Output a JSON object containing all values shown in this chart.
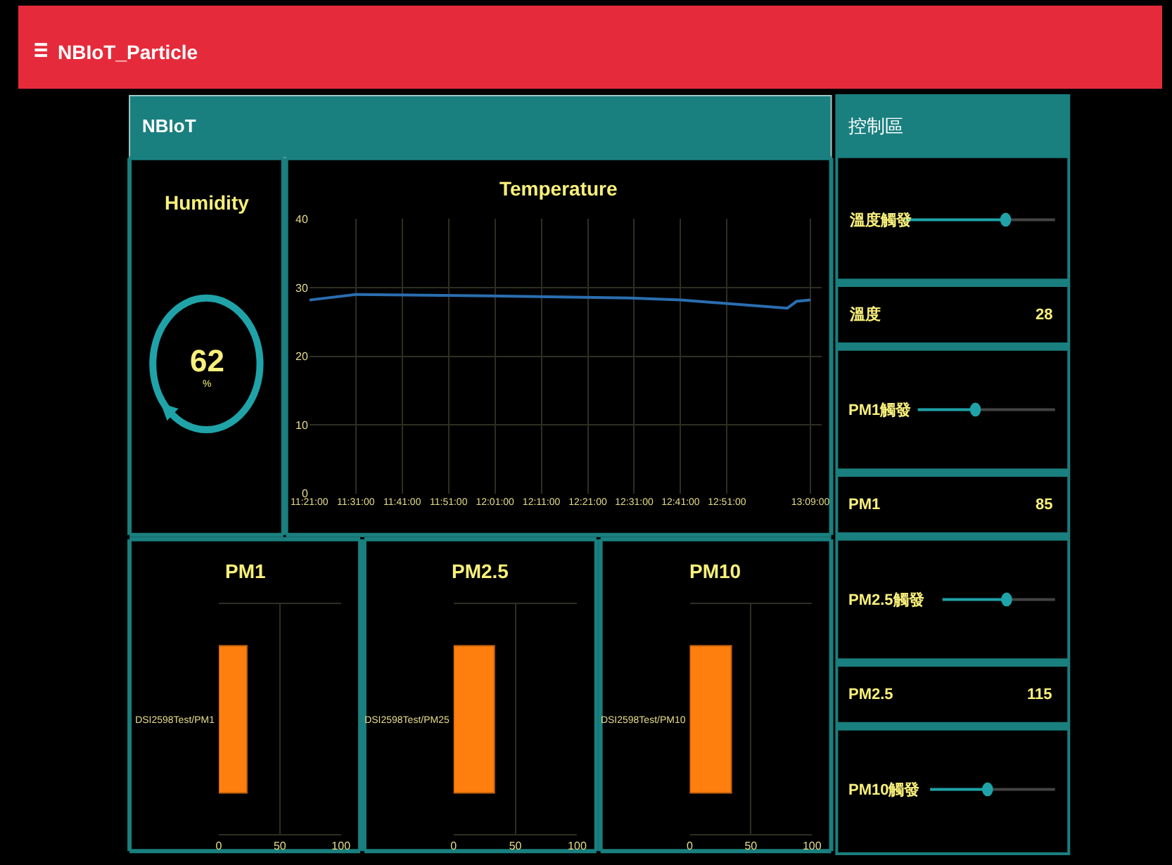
{
  "chart_data": [
    {
      "type": "other",
      "title": "NBIoT_Particle",
      "subtitle": "NBIoT"
    },
    {
      "type": "other",
      "title": "Humidity",
      "values": [
        62
      ],
      "value_labels": [
        "62"
      ],
      "annotations": [
        "%"
      ],
      "color": "#1fa3a8"
    },
    {
      "type": "line",
      "title": "Temperature",
      "x": [
        11.35,
        11.5167,
        12.0,
        12.5,
        12.6833,
        13.0667,
        13.1,
        13.15
      ],
      "values": [
        28.2,
        29.0,
        28.8,
        28.5,
        28.2,
        27.0,
        28.0,
        28.2
      ],
      "color": "#2a6eb0",
      "xlim": [
        11.35,
        13.19
      ],
      "xticks": [
        {
          "value": 11.35,
          "label": "11:21:00"
        },
        {
          "value": 11.5167,
          "label": "11:31:00"
        },
        {
          "value": 11.6833,
          "label": "11:41:00"
        },
        {
          "value": 11.85,
          "label": "11:51:00"
        },
        {
          "value": 12.0167,
          "label": "12:01:00"
        },
        {
          "value": 12.1833,
          "label": "12:11:00"
        },
        {
          "value": 12.35,
          "label": "12:21:00"
        },
        {
          "value": 12.5167,
          "label": "12:31:00"
        },
        {
          "value": 12.6833,
          "label": "12:41:00"
        },
        {
          "value": 12.85,
          "label": "12:51:00"
        },
        {
          "value": 13.15,
          "label": "13:09:00"
        }
      ],
      "ylim": [
        0,
        40
      ],
      "yticks": [
        0,
        10,
        20,
        30,
        40
      ],
      "grid": true
    },
    {
      "type": "bar",
      "orientation": "horizontal",
      "title": "PM1",
      "categories": [
        "DSI2598Test/PM1"
      ],
      "values": [
        23
      ],
      "color": "#ff7f0e",
      "xlim": [
        0,
        100
      ],
      "xticks": [
        0,
        50,
        100
      ],
      "grid": "x"
    },
    {
      "type": "bar",
      "orientation": "horizontal",
      "title": "PM2.5",
      "categories": [
        "DSI2598Test/PM25"
      ],
      "values": [
        33
      ],
      "color": "#ff7f0e",
      "xlim": [
        0,
        100
      ],
      "xticks": [
        0,
        50,
        100
      ],
      "grid": "x"
    },
    {
      "type": "bar",
      "orientation": "horizontal",
      "title": "PM10",
      "categories": [
        "DSI2598Test/PM10"
      ],
      "values": [
        34
      ],
      "color": "#ff7f0e",
      "xlim": [
        0,
        100
      ],
      "xticks": [
        0,
        50,
        100
      ],
      "grid": "x"
    },
    {
      "type": "other",
      "title": "控制區",
      "categories": [
        "溫度觸發",
        "溫度",
        "PM1觸發",
        "PM1",
        "PM2.5觸發",
        "PM2.5",
        "PM10觸發"
      ],
      "values": [
        null,
        28,
        null,
        85,
        null,
        115,
        null
      ],
      "value_labels": [
        null,
        "28",
        null,
        "85",
        null,
        "115",
        null
      ]
    }
  ]
}
